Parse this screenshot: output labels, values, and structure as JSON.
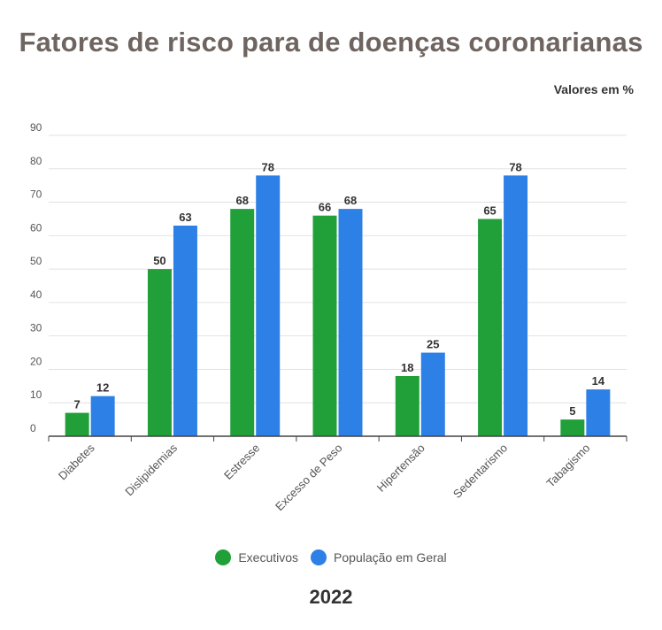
{
  "chart_data": {
    "type": "bar",
    "title": "Fatores de risco para de doenças coronarianas",
    "units_label": "Valores em %",
    "categories": [
      "Diabetes",
      "Dislipidemias",
      "Estresse",
      "Excesso de Peso",
      "Hipertensão",
      "Sedentarismo",
      "Tabagismo"
    ],
    "series": [
      {
        "name": "Executivos",
        "color": "#21a03a",
        "values": [
          7,
          50,
          68,
          66,
          18,
          65,
          5
        ]
      },
      {
        "name": "População em Geral",
        "color": "#2d80e6",
        "values": [
          12,
          63,
          78,
          68,
          25,
          78,
          14
        ]
      }
    ],
    "ylim": [
      0,
      90
    ],
    "yticks": [
      0,
      10,
      20,
      30,
      40,
      50,
      60,
      70,
      80,
      90
    ],
    "grid": true,
    "legend": "bottom",
    "footer": "2022"
  }
}
